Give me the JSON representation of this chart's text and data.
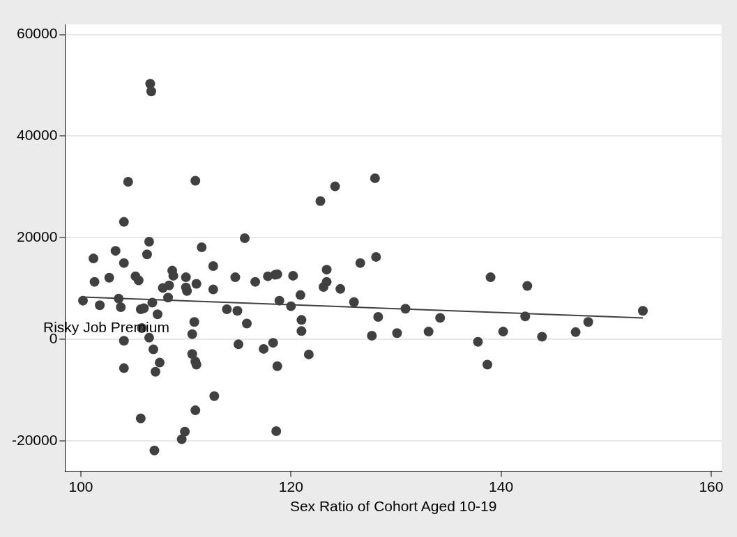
{
  "chart_data": {
    "type": "scatter",
    "xlabel": "Sex Ratio of Cohort Aged 10-19",
    "ylabel": "Risky Job Premium",
    "xlim": [
      98.5,
      161
    ],
    "xticks": [
      100,
      120,
      140,
      160
    ],
    "ylim": [
      -26000,
      62000
    ],
    "yticks": [
      -20000,
      0,
      20000,
      40000,
      60000
    ],
    "grid": "y",
    "legend": false,
    "marker": "circle",
    "series": [
      {
        "color": "#404040",
        "x": [
          100.2,
          101.2,
          101.3,
          101.8,
          102.7,
          103.3,
          103.6,
          103.8,
          104.1,
          104.1,
          104.1,
          104.1,
          104.5,
          105.2,
          105.5,
          105.7,
          105.8,
          105.7,
          106.0,
          106.3,
          106.5,
          106.5,
          106.6,
          106.7,
          106.8,
          106.9,
          107.0,
          107.1,
          107.3,
          107.5,
          107.8,
          108.3,
          108.4,
          108.7,
          108.8,
          109.6,
          109.9,
          110.0,
          110.0,
          110.1,
          110.6,
          110.6,
          110.8,
          110.9,
          110.9,
          110.9,
          111.0,
          111.0,
          111.5,
          112.6,
          112.6,
          112.7,
          113.9,
          114.7,
          114.9,
          115.0,
          115.6,
          115.8,
          116.6,
          117.4,
          117.8,
          118.3,
          118.5,
          118.7,
          118.7,
          118.6,
          118.9,
          120.0,
          120.2,
          120.9,
          121.0,
          121.0,
          121.7,
          122.8,
          123.1,
          123.4,
          123.4,
          124.2,
          124.7,
          126.0,
          126.6,
          127.7,
          128.0,
          128.1,
          128.3,
          130.1,
          130.9,
          133.1,
          134.2,
          137.8,
          138.7,
          139.0,
          140.2,
          142.3,
          142.5,
          143.9,
          147.1,
          148.3,
          153.5
        ],
        "values": [
          7600,
          15900,
          11300,
          6700,
          12100,
          17400,
          8000,
          6300,
          15000,
          23100,
          -300,
          -5700,
          31000,
          12400,
          11600,
          5900,
          2200,
          -15600,
          6100,
          16700,
          300,
          19200,
          50300,
          48800,
          7200,
          -2000,
          -21900,
          -6400,
          4900,
          -4600,
          10100,
          8200,
          10600,
          13500,
          12500,
          -19700,
          -18200,
          12200,
          10200,
          9500,
          1000,
          -2900,
          3400,
          -4400,
          31200,
          -14000,
          -5000,
          10900,
          18100,
          14400,
          9800,
          -11200,
          5900,
          12200,
          5600,
          -1000,
          19900,
          3100,
          11300,
          -1900,
          12400,
          -700,
          12700,
          12800,
          -5300,
          -18100,
          7600,
          6500,
          12500,
          8700,
          3800,
          1600,
          -3000,
          27200,
          10300,
          13700,
          11300,
          30100,
          9900,
          7300,
          15000,
          700,
          31700,
          16200,
          4400,
          1200,
          6000,
          1500,
          4200,
          -500,
          -5000,
          12200,
          1500,
          4500,
          10500,
          500,
          1400,
          3400,
          5600
        ]
      },
      {
        "type": "line",
        "color": "#404040",
        "marker": "none",
        "x": [
          100.2,
          153.5
        ],
        "values": [
          8300,
          4200
        ]
      }
    ]
  }
}
